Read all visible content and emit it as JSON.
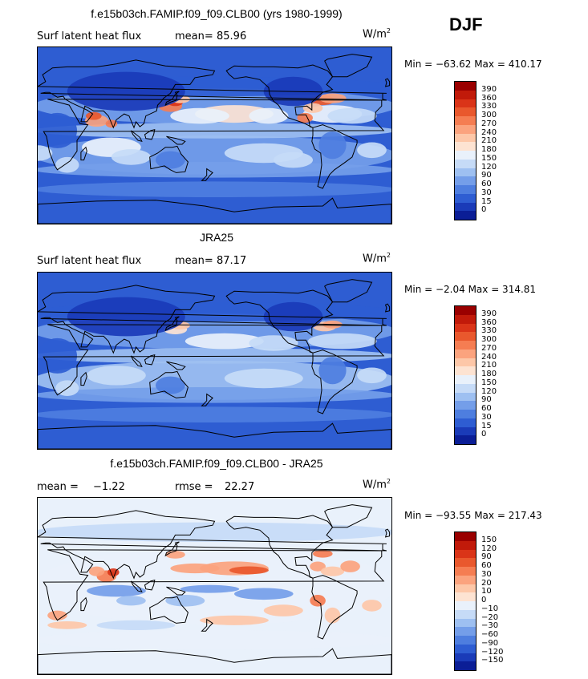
{
  "season": "DJF",
  "panels": [
    {
      "title": "f.e15b03ch.FAMIP.f09_f09.CLB00 (yrs 1980-1999)",
      "left_label": "Surf latent heat flux",
      "stat1_label": "mean=",
      "stat1_value": "85.96",
      "stat2_label": "",
      "stat2_value": "",
      "unit": "W/m",
      "unit_exp": "2",
      "minmax": "Min = −63.62 Max = 410.17",
      "colorbar": {
        "levels": [
          "390",
          "360",
          "330",
          "300",
          "270",
          "240",
          "210",
          "180",
          "150",
          "120",
          "90",
          "60",
          "30",
          "15",
          "0"
        ],
        "colors": [
          "#9a0000",
          "#c11a0a",
          "#da3418",
          "#e9582d",
          "#f57d52",
          "#fba37e",
          "#fdc7a8",
          "#fde3d2",
          "#e9f1fb",
          "#c6dbf7",
          "#9ec0f1",
          "#749ee9",
          "#4e7edf",
          "#2e5dd2",
          "#1a3bb8",
          "#0b1e96"
        ]
      },
      "map_style": "flux_model"
    },
    {
      "title": "JRA25",
      "left_label": "Surf latent heat flux",
      "stat1_label": "mean=",
      "stat1_value": "87.17",
      "stat2_label": "",
      "stat2_value": "",
      "unit": "W/m",
      "unit_exp": "2",
      "minmax": "Min =  −2.04 Max = 314.81",
      "colorbar": {
        "levels": [
          "390",
          "360",
          "330",
          "300",
          "270",
          "240",
          "210",
          "180",
          "150",
          "120",
          "90",
          "60",
          "30",
          "15",
          "0"
        ],
        "colors": [
          "#9a0000",
          "#c11a0a",
          "#da3418",
          "#e9582d",
          "#f57d52",
          "#fba37e",
          "#fdc7a8",
          "#fde3d2",
          "#e9f1fb",
          "#c6dbf7",
          "#9ec0f1",
          "#749ee9",
          "#4e7edf",
          "#2e5dd2",
          "#1a3bb8",
          "#0b1e96"
        ]
      },
      "map_style": "flux_obs"
    },
    {
      "title": "f.e15b03ch.FAMIP.f09_f09.CLB00 - JRA25",
      "left_label": "",
      "stat1_label": "mean =",
      "stat1_value": "−1.22",
      "stat2_label": "rmse =",
      "stat2_value": "22.27",
      "unit": "W/m",
      "unit_exp": "2",
      "minmax": "Min = −93.55 Max = 217.43",
      "colorbar": {
        "levels": [
          "150",
          "120",
          "90",
          "60",
          "30",
          "20",
          "10",
          "0",
          "−10",
          "−20",
          "−30",
          "−60",
          "−90",
          "−120",
          "−150"
        ],
        "colors": [
          "#9a0000",
          "#c11a0a",
          "#da3418",
          "#e9582d",
          "#f57d52",
          "#fba37e",
          "#fdc7a8",
          "#fde3d2",
          "#e9f1fb",
          "#c6dbf7",
          "#9ec0f1",
          "#749ee9",
          "#4e7edf",
          "#2e5dd2",
          "#1a3bb8",
          "#0b1e96"
        ]
      },
      "map_style": "diff"
    }
  ]
}
